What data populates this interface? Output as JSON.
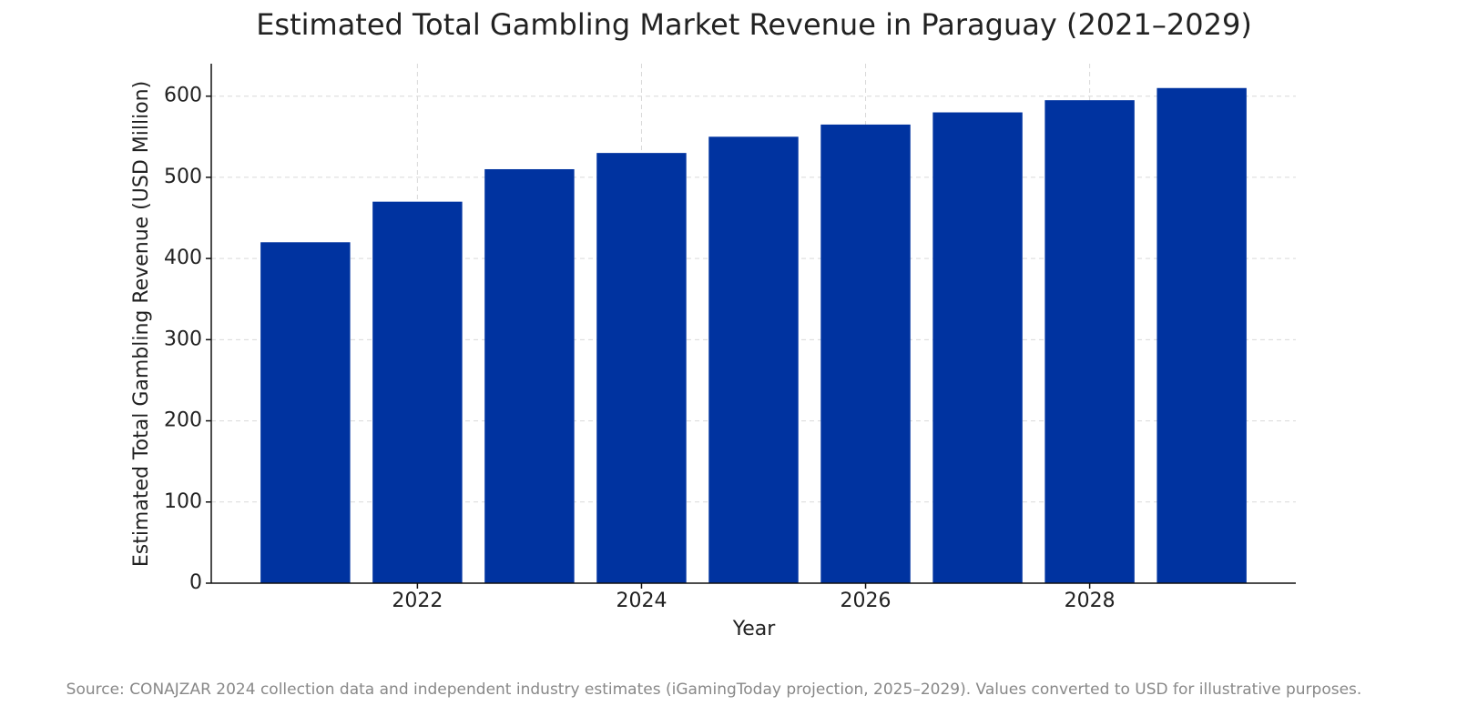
{
  "chart_data": {
    "type": "bar",
    "title": "Estimated Total Gambling Market Revenue in Paraguay (2021–2029)",
    "x_label": "Year",
    "y_label": "Estimated Total Gambling Revenue (USD Million)",
    "x": [
      2021,
      2022,
      2023,
      2024,
      2025,
      2026,
      2027,
      2028,
      2029
    ],
    "values": [
      420,
      470,
      510,
      530,
      550,
      565,
      580,
      595,
      610
    ],
    "color": "#0033a0",
    "xlim": [
      2020.16,
      2029.84
    ],
    "xticks": [
      2022,
      2024,
      2026,
      2028
    ],
    "ylim": [
      0,
      640
    ],
    "yticks": [
      0,
      100,
      200,
      300,
      400,
      500,
      600
    ],
    "grid": true,
    "source": "Source: CONAJZAR 2024 collection data and independent industry estimates (iGamingToday projection, 2025–2029). Values converted to USD for illustrative purposes."
  }
}
